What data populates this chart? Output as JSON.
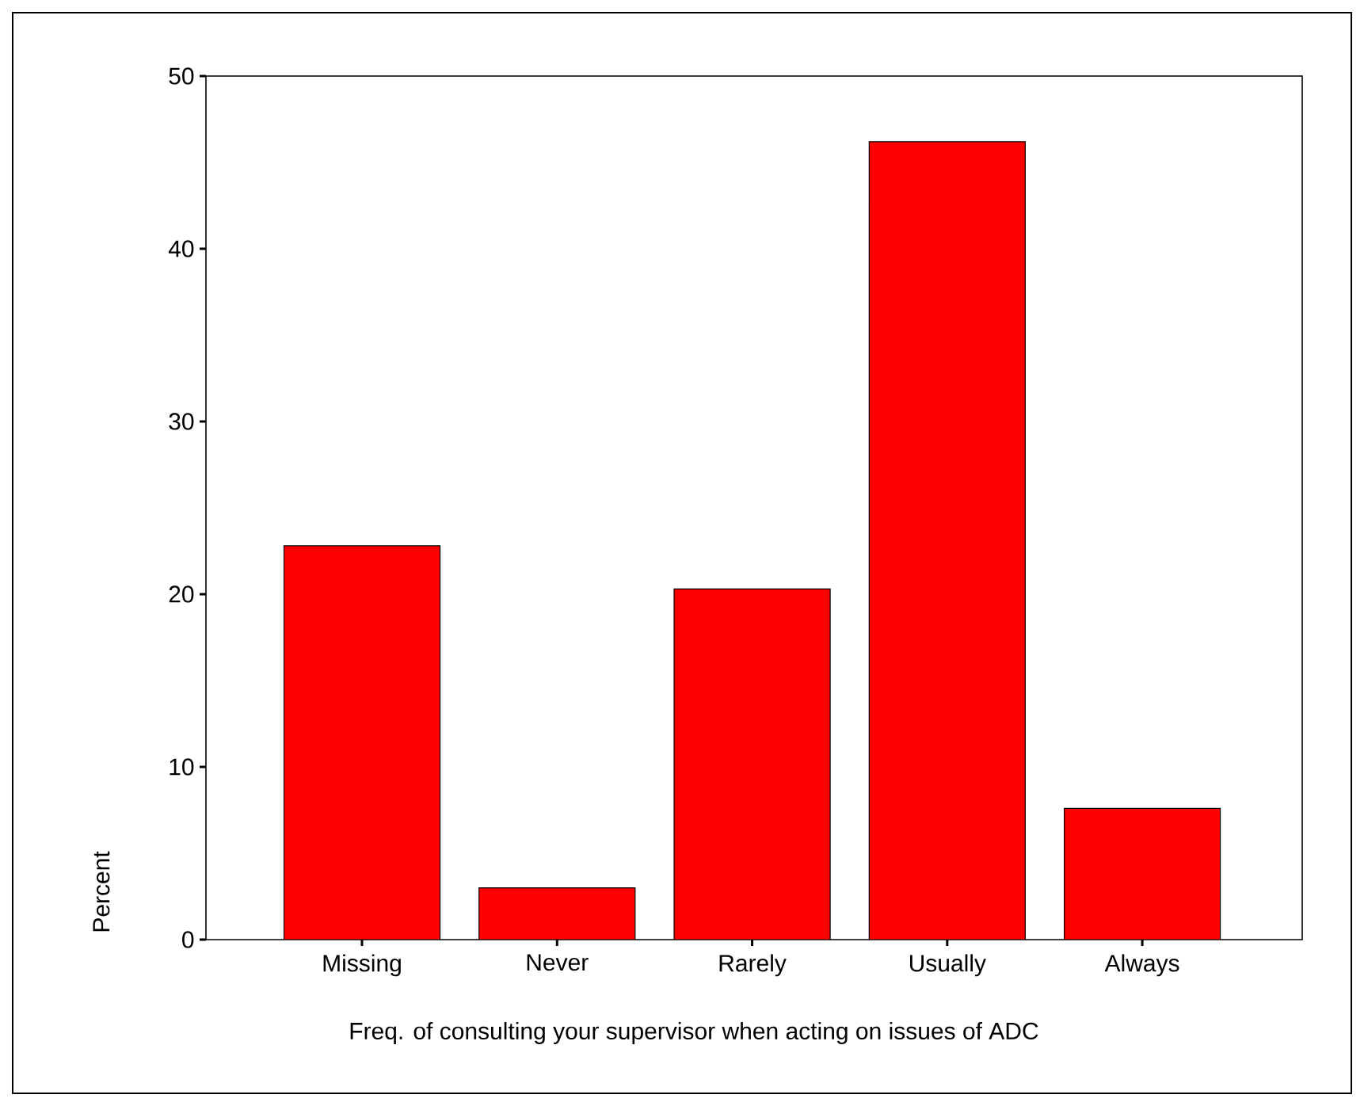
{
  "chart_data": {
    "type": "bar",
    "xlabel": "Freq. of consulting your supervisor when acting on issues of ADC",
    "ylabel": "Percent",
    "categories": [
      "Missing",
      "Never",
      "Rarely",
      "Usually",
      "Always"
    ],
    "values": [
      22.8,
      3.0,
      20.3,
      46.2,
      7.6
    ],
    "color": "#ff0000",
    "ylim": [
      0,
      50
    ],
    "yticks": [
      0,
      10,
      20,
      30,
      40,
      50
    ]
  }
}
